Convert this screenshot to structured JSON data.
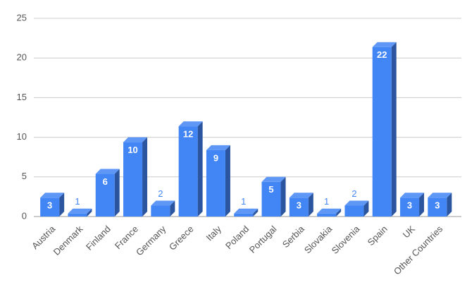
{
  "chart_data": {
    "type": "bar3d",
    "categories": [
      "Austria",
      "Denmark",
      "Finland",
      "France",
      "Germany",
      "Greece",
      "Italy",
      "Poland",
      "Portugal",
      "Serbia",
      "Slovakia",
      "Slovenia",
      "Spain",
      "UK",
      "Other Countries"
    ],
    "values": [
      3,
      1,
      6,
      10,
      2,
      12,
      9,
      1,
      5,
      3,
      1,
      2,
      22,
      3,
      3
    ],
    "color": "#4285f4",
    "ylim": [
      0,
      25
    ],
    "yticks": [
      0,
      5,
      10,
      15,
      20,
      25
    ],
    "grid": true
  }
}
